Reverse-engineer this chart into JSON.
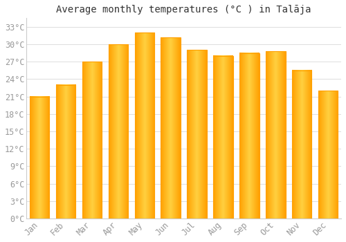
{
  "title": "Average monthly temperatures (°C ) in Talāja",
  "months": [
    "Jan",
    "Feb",
    "Mar",
    "Apr",
    "May",
    "Jun",
    "Jul",
    "Aug",
    "Sep",
    "Oct",
    "Nov",
    "Dec"
  ],
  "values": [
    21.0,
    23.0,
    27.0,
    30.0,
    32.0,
    31.2,
    29.0,
    28.0,
    28.5,
    28.8,
    25.5,
    22.0
  ],
  "bar_color_center": "#FFD040",
  "bar_color_edge": "#FFA000",
  "background_color": "#FFFFFF",
  "plot_bg_color": "#FFFFFF",
  "grid_color": "#DDDDDD",
  "yticks": [
    0,
    3,
    6,
    9,
    12,
    15,
    18,
    21,
    24,
    27,
    30,
    33
  ],
  "ylim": [
    0,
    34.5
  ],
  "title_fontsize": 10,
  "tick_fontsize": 8.5,
  "tick_color": "#999999",
  "spine_color": "#CCCCCC"
}
